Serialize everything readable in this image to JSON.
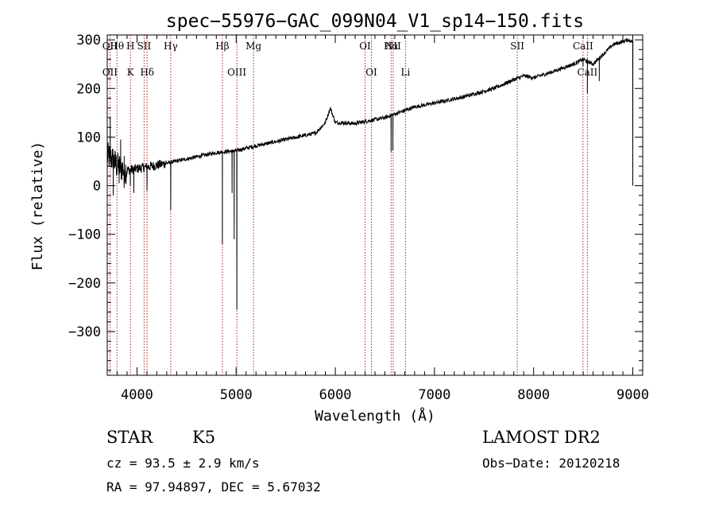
{
  "chart_data": {
    "type": "line",
    "title": "spec−55976−GAC_099N04_V1_sp14−150.fits",
    "xlabel": "Wavelength (Å)",
    "ylabel": "Flux (relative)",
    "xlim": [
      3700,
      9100
    ],
    "ylim": [
      -390,
      310
    ],
    "xticks": [
      4000,
      5000,
      6000,
      7000,
      8000,
      9000
    ],
    "xtick_labels": [
      "4000",
      "5000",
      "6000",
      "7000",
      "8000",
      "9000"
    ],
    "yticks": [
      300,
      200,
      100,
      0,
      -100,
      -200,
      -300
    ],
    "ytick_labels": [
      "300",
      "200",
      "100",
      "0",
      "−100",
      "−200",
      "−300"
    ],
    "continuum": {
      "x": [
        3700,
        3750,
        3800,
        3900,
        4000,
        4200,
        4500,
        4800,
        5000,
        5200,
        5500,
        5800,
        5900,
        5950,
        6000,
        6200,
        6500,
        6800,
        7000,
        7300,
        7600,
        7800,
        7900,
        8000,
        8200,
        8400,
        8500,
        8600,
        8700,
        8800,
        8950,
        9000
      ],
      "y": [
        60,
        55,
        40,
        32,
        35,
        42,
        55,
        68,
        72,
        82,
        95,
        108,
        130,
        160,
        130,
        128,
        140,
        162,
        170,
        183,
        200,
        218,
        226,
        222,
        235,
        250,
        260,
        250,
        270,
        290,
        300,
        296
      ]
    },
    "absorption_features": [
      {
        "x": 3730,
        "y": 140
      },
      {
        "x": 3760,
        "y": -20
      },
      {
        "x": 3820,
        "y": 5
      },
      {
        "x": 3835,
        "y": 95
      },
      {
        "x": 3870,
        "y": -5
      },
      {
        "x": 3933,
        "y": 0
      },
      {
        "x": 3968,
        "y": -15
      },
      {
        "x": 4101,
        "y": -10
      },
      {
        "x": 4340,
        "y": -50
      },
      {
        "x": 4861,
        "y": -120
      },
      {
        "x": 4959,
        "y": -15
      },
      {
        "x": 4980,
        "y": -110
      },
      {
        "x": 5007,
        "y": -255
      },
      {
        "x": 6563,
        "y": 70
      },
      {
        "x": 6580,
        "y": 72
      },
      {
        "x": 8498,
        "y": 245
      },
      {
        "x": 8542,
        "y": 190
      },
      {
        "x": 8662,
        "y": 215
      },
      {
        "x": 9000,
        "y": 0
      }
    ],
    "line_markers": [
      {
        "x": 3727,
        "top": "OII",
        "bottom": "OII"
      },
      {
        "x": 3798,
        "top": "Hθ",
        "bottom": ""
      },
      {
        "x": 3934,
        "top": "H",
        "bottom": "K"
      },
      {
        "x": 4072,
        "top": "SII",
        "bottom": ""
      },
      {
        "x": 4102,
        "top": "",
        "bottom": "Hδ"
      },
      {
        "x": 4340,
        "top": "Hγ",
        "bottom": ""
      },
      {
        "x": 4861,
        "top": "Hβ",
        "bottom": ""
      },
      {
        "x": 5007,
        "top": "",
        "bottom": "OIII"
      },
      {
        "x": 5175,
        "top": "Mg",
        "bottom": ""
      },
      {
        "x": 6300,
        "top": "OI",
        "bottom": ""
      },
      {
        "x": 6364,
        "top": "",
        "bottom": "OI"
      },
      {
        "x": 6563,
        "top": "Hα",
        "bottom": ""
      },
      {
        "x": 6583,
        "top": "NII",
        "bottom": ""
      },
      {
        "x": 6708,
        "top": "",
        "bottom": "Li"
      },
      {
        "x": 7835,
        "top": "SII",
        "bottom": ""
      },
      {
        "x": 8498,
        "top": "CaII",
        "bottom": ""
      },
      {
        "x": 8542,
        "top": "",
        "bottom": "CaII"
      }
    ],
    "grid": false,
    "legend": "none"
  },
  "info": {
    "object_class": "STAR",
    "subclass": "K5",
    "survey": "LAMOST DR2",
    "redshift": "cz = 93.5 ± 2.9 km/s",
    "obs_date": "Obs−Date: 20120218",
    "coords": "RA =  97.94897, DEC =   5.67032"
  }
}
